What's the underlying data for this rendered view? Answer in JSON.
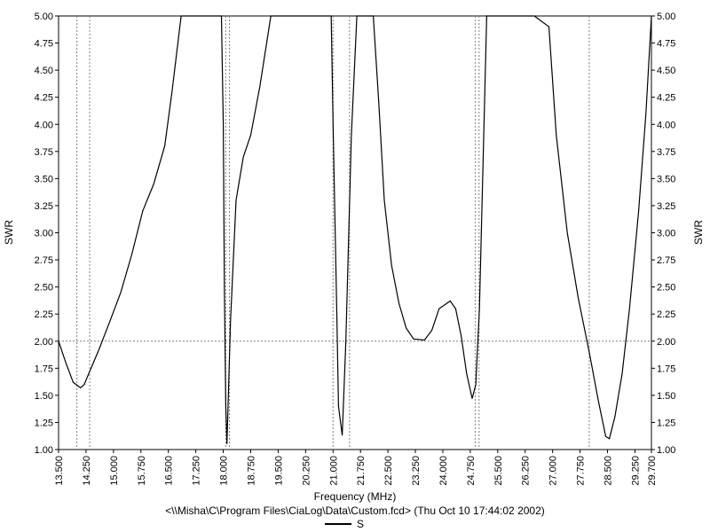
{
  "chart_data": {
    "type": "line",
    "xlabel": "Frequency (MHz)",
    "ylabel": "SWR",
    "caption": "<\\\\Misha\\C\\Program Files\\CiaLog\\Data\\Custom.fcd> (Thu Oct 10 17:44:02 2002)",
    "xlim": [
      13.5,
      29.7
    ],
    "ylim": [
      1.0,
      5.0
    ],
    "x_ticks": [
      "13.500",
      "14.250",
      "15.000",
      "15.750",
      "16.500",
      "17.250",
      "18.000",
      "18.750",
      "19.500",
      "20.250",
      "21.000",
      "21.750",
      "22.500",
      "23.250",
      "24.000",
      "24.750",
      "25.500",
      "26.250",
      "27.000",
      "27.750",
      "28.500",
      "29.250",
      "29.700"
    ],
    "y_ticks": [
      "1.00",
      "1.25",
      "1.50",
      "1.75",
      "2.00",
      "2.25",
      "2.50",
      "2.75",
      "3.00",
      "3.25",
      "3.50",
      "3.75",
      "4.00",
      "4.25",
      "4.50",
      "4.75",
      "5.00"
    ],
    "reference_line_y": 2.0,
    "band_markers_mhz": [
      14.0,
      14.35,
      18.068,
      18.168,
      21.0,
      21.45,
      24.89,
      24.99,
      28.0
    ],
    "series": [
      {
        "name": "S",
        "color": "#000000",
        "x": [
          13.5,
          13.7,
          13.9,
          14.1,
          14.2,
          14.35,
          14.6,
          14.9,
          15.2,
          15.5,
          15.8,
          16.1,
          16.4,
          16.6,
          16.85,
          17.0,
          17.5,
          17.95,
          18.0,
          18.03,
          18.07,
          18.1,
          18.2,
          18.35,
          18.55,
          18.75,
          19.0,
          19.3,
          19.5,
          20.0,
          20.5,
          20.95,
          21.0,
          21.1,
          21.15,
          21.25,
          21.35,
          21.5,
          21.65,
          21.78,
          22.0,
          22.1,
          22.25,
          22.4,
          22.6,
          22.8,
          23.0,
          23.2,
          23.5,
          23.7,
          23.9,
          24.2,
          24.35,
          24.5,
          24.65,
          24.8,
          24.9,
          25.0,
          25.2,
          25.5,
          26.0,
          26.5,
          26.9,
          27.1,
          27.4,
          27.7,
          28.0,
          28.25,
          28.45,
          28.55,
          28.7,
          28.9,
          29.1,
          29.35,
          29.55,
          29.7
        ],
        "values": [
          2.0,
          1.8,
          1.62,
          1.57,
          1.6,
          1.72,
          1.92,
          2.18,
          2.45,
          2.8,
          3.2,
          3.45,
          3.8,
          4.3,
          5.0,
          5.0,
          5.0,
          5.0,
          4.0,
          2.5,
          1.4,
          1.05,
          2.2,
          3.3,
          3.7,
          3.9,
          4.35,
          5.0,
          5.0,
          5.0,
          5.0,
          5.0,
          4.0,
          2.3,
          1.4,
          1.13,
          2.0,
          3.9,
          5.0,
          5.0,
          5.0,
          5.0,
          4.2,
          3.3,
          2.7,
          2.35,
          2.12,
          2.02,
          2.01,
          2.1,
          2.3,
          2.37,
          2.3,
          2.05,
          1.7,
          1.47,
          1.6,
          2.3,
          5.0,
          5.0,
          5.0,
          5.0,
          4.9,
          3.9,
          3.0,
          2.4,
          1.9,
          1.45,
          1.12,
          1.1,
          1.3,
          1.7,
          2.3,
          3.2,
          4.1,
          5.0
        ]
      }
    ]
  }
}
